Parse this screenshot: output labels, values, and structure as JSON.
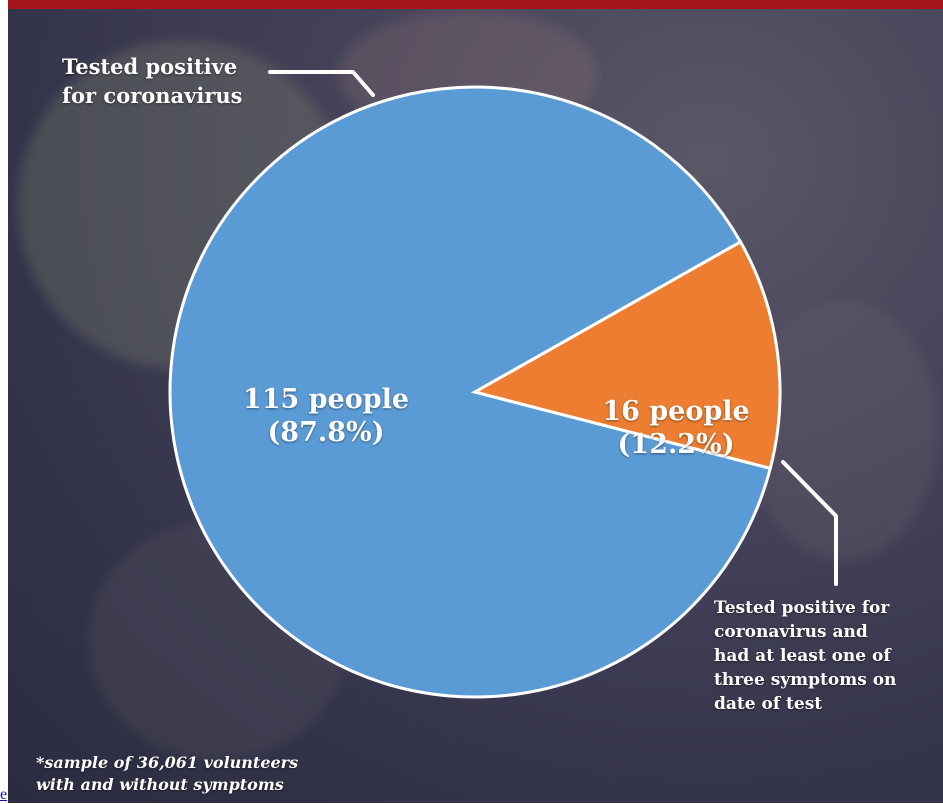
{
  "colors": {
    "top_bar": "#a6141c",
    "background": "#3b3b52",
    "slice_main": "#5b9bd5",
    "slice_symptoms": "#ed7d31",
    "slice_border": "#ffffff",
    "text": "#ffffff"
  },
  "labels": {
    "tested_positive": "Tested positive\nfor coronavirus",
    "slice_main_count": "115 people",
    "slice_main_percent": "(87.8%)",
    "slice_symptoms_count": "16 people",
    "slice_symptoms_percent": "(12.2%)",
    "symptoms_description": "Tested positive for\ncoronavirus and\nhad at least one of\nthree symptoms on\ndate of test",
    "footnote": "*sample of 36,061 volunteers\nwith and without symptoms",
    "stray_link": "e"
  },
  "chart_data": {
    "type": "pie",
    "title": "",
    "slices": [
      {
        "label": "Tested positive for coronavirus",
        "count": 115,
        "percent": 87.8,
        "color": "#5b9bd5"
      },
      {
        "label": "Tested positive for coronavirus and had at least one of three symptoms on date of test",
        "count": 16,
        "percent": 12.2,
        "color": "#ed7d31"
      }
    ],
    "legend": "none",
    "annotations": [
      "*sample of 36,061 volunteers with and without symptoms"
    ]
  }
}
